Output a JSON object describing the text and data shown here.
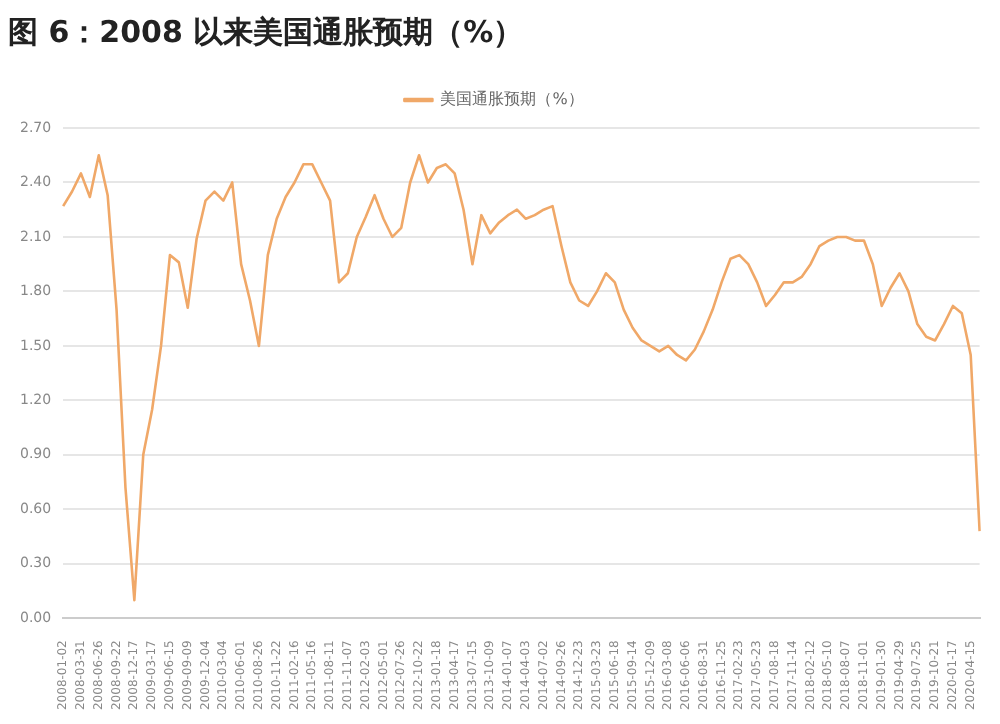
{
  "chart_data": {
    "type": "line",
    "title": "图 6：2008 以来美国通胀预期（%）",
    "categories": [
      "2008-01-02",
      null,
      "2008-03-31",
      null,
      "2008-06-26",
      null,
      "2008-09-22",
      null,
      "2008-12-17",
      null,
      "2009-03-17",
      null,
      "2009-06-15",
      null,
      "2009-09-09",
      null,
      "2009-12-04",
      null,
      "2010-03-04",
      null,
      "2010-06-01",
      null,
      "2010-08-26",
      null,
      "2010-11-22",
      null,
      "2011-02-16",
      null,
      "2011-05-16",
      null,
      "2011-08-11",
      null,
      "2011-11-07",
      null,
      "2012-02-03",
      null,
      "2012-05-01",
      null,
      "2012-07-26",
      null,
      "2012-10-22",
      null,
      "2013-01-18",
      null,
      "2013-04-17",
      null,
      "2013-07-15",
      null,
      "2013-10-09",
      null,
      "2014-01-07",
      null,
      "2014-04-03",
      null,
      "2014-07-02",
      null,
      "2014-09-26",
      null,
      "2014-12-23",
      null,
      "2015-03-23",
      null,
      "2015-06-18",
      null,
      "2015-09-14",
      null,
      "2015-12-09",
      null,
      "2016-03-08",
      null,
      "2016-06-06",
      null,
      "2016-08-31",
      null,
      "2016-11-25",
      null,
      "2017-02-23",
      null,
      "2017-05-23",
      null,
      "2017-08-18",
      null,
      "2017-11-14",
      null,
      "2018-02-12",
      null,
      "2018-05-10",
      null,
      "2018-08-07",
      null,
      "2018-11-01",
      null,
      "2019-01-30",
      null,
      "2019-04-29",
      null,
      "2019-07-25",
      null,
      "2019-10-21",
      null,
      "2020-01-17",
      null,
      "2020-04-15",
      null
    ],
    "series": [
      {
        "name": "美国通胀预期（%）",
        "color": "#f0a868",
        "values": [
          2.27,
          2.35,
          2.45,
          2.32,
          2.55,
          2.33,
          1.7,
          0.72,
          0.1,
          0.9,
          1.15,
          1.5,
          2.0,
          1.96,
          1.71,
          2.09,
          2.3,
          2.35,
          2.3,
          2.4,
          1.95,
          1.75,
          1.5,
          2.0,
          2.2,
          2.32,
          2.4,
          2.5,
          2.5,
          2.4,
          2.3,
          1.85,
          1.9,
          2.1,
          2.21,
          2.33,
          2.2,
          2.1,
          2.15,
          2.4,
          2.55,
          2.4,
          2.48,
          2.5,
          2.45,
          2.25,
          1.95,
          2.22,
          2.12,
          2.18,
          2.22,
          2.25,
          2.2,
          2.22,
          2.25,
          2.27,
          2.05,
          1.85,
          1.75,
          1.72,
          1.8,
          1.9,
          1.85,
          1.7,
          1.6,
          1.53,
          1.5,
          1.47,
          1.5,
          1.45,
          1.42,
          1.48,
          1.58,
          1.7,
          1.85,
          1.98,
          2.0,
          1.95,
          1.85,
          1.72,
          1.78,
          1.85,
          1.85,
          1.88,
          1.95,
          2.05,
          2.08,
          2.1,
          2.1,
          2.08,
          2.08,
          1.95,
          1.72,
          1.82,
          1.9,
          1.8,
          1.62,
          1.55,
          1.53,
          1.62,
          1.72,
          1.68,
          1.45,
          0.48
        ]
      }
    ],
    "ylim": [
      0,
      2.7
    ],
    "yticks": [
      {
        "value": 0,
        "label": "0.00"
      },
      {
        "value": 0.3,
        "label": "0.30"
      },
      {
        "value": 0.6,
        "label": "0.60"
      },
      {
        "value": 0.9,
        "label": "0.90"
      },
      {
        "value": 1.2,
        "label": "1.20"
      },
      {
        "value": 1.5,
        "label": "1.50"
      },
      {
        "value": 1.8,
        "label": "1.80"
      },
      {
        "value": 2.1,
        "label": "2.10"
      },
      {
        "value": 2.4,
        "label": "2.40"
      },
      {
        "value": 2.7,
        "label": "2.70"
      }
    ],
    "grid": "y",
    "legend": "top",
    "marker": "none",
    "line_style": "solid"
  }
}
